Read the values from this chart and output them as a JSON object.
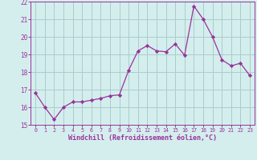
{
  "x": [
    0,
    1,
    2,
    3,
    4,
    5,
    6,
    7,
    8,
    9,
    10,
    11,
    12,
    13,
    14,
    15,
    16,
    17,
    18,
    19,
    20,
    21,
    22,
    23
  ],
  "y": [
    16.8,
    16.0,
    15.3,
    16.0,
    16.3,
    16.3,
    16.4,
    16.5,
    16.65,
    16.7,
    18.1,
    19.2,
    19.5,
    19.2,
    19.15,
    19.6,
    18.95,
    21.75,
    21.0,
    20.0,
    18.7,
    18.35,
    18.5,
    17.8
  ],
  "line_color": "#993399",
  "marker_color": "#993399",
  "bg_color": "#d4eeee",
  "grid_color": "#aacccc",
  "xlabel": "Windchill (Refroidissement éolien,°C)",
  "ylim": [
    15,
    22
  ],
  "xlim": [
    -0.5,
    23.5
  ],
  "yticks": [
    15,
    16,
    17,
    18,
    19,
    20,
    21,
    22
  ],
  "xticks": [
    0,
    1,
    2,
    3,
    4,
    5,
    6,
    7,
    8,
    9,
    10,
    11,
    12,
    13,
    14,
    15,
    16,
    17,
    18,
    19,
    20,
    21,
    22,
    23
  ],
  "xlabel_color": "#993399",
  "tick_color": "#993399",
  "axis_color": "#993399"
}
